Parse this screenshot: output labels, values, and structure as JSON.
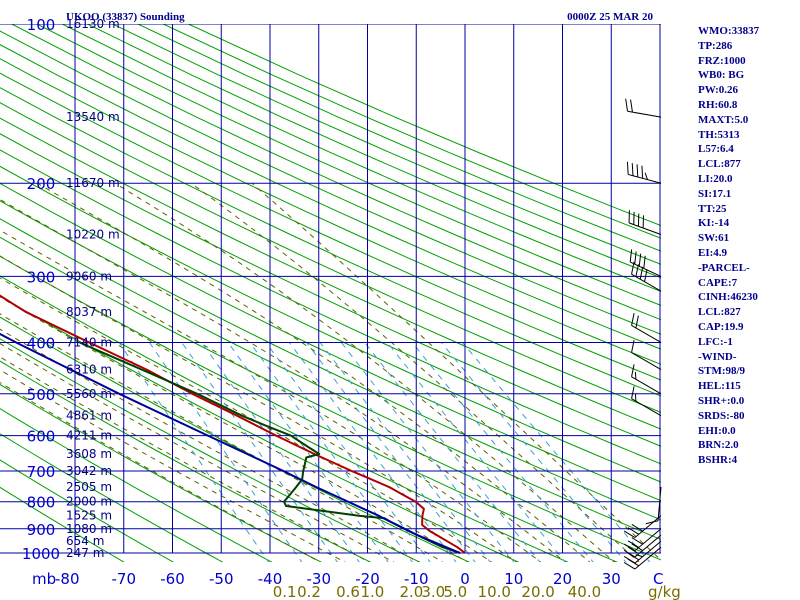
{
  "chart_data": {
    "type": "line",
    "title_left": "UKOO (33837) Sounding",
    "title_right": "0000Z 25 MAR 20",
    "y_unit": "mb",
    "x_unit": "C",
    "mixing_unit": "g/kg",
    "pressure_levels": [
      100,
      200,
      300,
      400,
      500,
      600,
      700,
      800,
      900,
      1000
    ],
    "temperature_ticks": [
      -80,
      -70,
      -60,
      -50,
      -40,
      -30,
      -20,
      -10,
      0,
      10,
      20,
      30,
      40
    ],
    "xlim": [
      -80,
      40
    ],
    "ylim": [
      1000,
      100
    ],
    "y_scale": "log",
    "grid": true,
    "mixing_ratio_labels": [
      {
        "t": -37,
        "text": "0.1"
      },
      {
        "t": -32,
        "text": "0.2"
      },
      {
        "t": -24,
        "text": "0.6"
      },
      {
        "t": -19,
        "text": "1.0"
      },
      {
        "t": -11,
        "text": "2.0"
      },
      {
        "t": -6.5,
        "text": "3.0"
      },
      {
        "t": -2,
        "text": "5.0"
      },
      {
        "t": 6,
        "text": "10.0"
      },
      {
        "t": 15,
        "text": "20.0"
      },
      {
        "t": 24.5,
        "text": "40.0"
      }
    ],
    "height_labels": [
      {
        "p": 100,
        "text": "16130 m"
      },
      {
        "p": 150,
        "text": "13540 m"
      },
      {
        "p": 200,
        "text": "11670 m"
      },
      {
        "p": 250,
        "text": "10220 m"
      },
      {
        "p": 300,
        "text": "9060 m"
      },
      {
        "p": 350,
        "text": "8037 m"
      },
      {
        "p": 400,
        "text": "7140 m"
      },
      {
        "p": 450,
        "text": "6310 m"
      },
      {
        "p": 500,
        "text": "5560 m"
      },
      {
        "p": 550,
        "text": "4861 m"
      },
      {
        "p": 600,
        "text": "4211 m"
      },
      {
        "p": 650,
        "text": "3608 m"
      },
      {
        "p": 700,
        "text": "3042 m"
      },
      {
        "p": 750,
        "text": "2505 m"
      },
      {
        "p": 800,
        "text": "2000 m"
      },
      {
        "p": 850,
        "text": "1525 m"
      },
      {
        "p": 900,
        "text": "1080 m"
      },
      {
        "p": 950,
        "text": "654 m"
      },
      {
        "p": 1000,
        "text": "247 m"
      }
    ],
    "series": [
      {
        "color": "#b00000",
        "points": [
          [
            1000,
            0
          ],
          [
            975,
            -1
          ],
          [
            950,
            -2.5
          ],
          [
            925,
            -4
          ],
          [
            910,
            -5
          ],
          [
            885,
            -6
          ],
          [
            850,
            -5
          ],
          [
            825,
            -4
          ],
          [
            800,
            -5
          ],
          [
            775,
            -7
          ],
          [
            750,
            -9
          ],
          [
            700,
            -15
          ],
          [
            650,
            -21
          ],
          [
            600,
            -27
          ],
          [
            550,
            -33
          ],
          [
            500,
            -40
          ],
          [
            450,
            -47
          ],
          [
            400,
            -56
          ],
          [
            350,
            -66
          ],
          [
            300,
            -74
          ],
          [
            275,
            -76
          ],
          [
            250,
            -77
          ],
          [
            240,
            -76.5
          ],
          [
            225,
            -73
          ],
          [
            215,
            -74
          ],
          [
            200,
            -71
          ],
          [
            170,
            -70
          ],
          [
            150,
            -72
          ],
          [
            125,
            -73
          ],
          [
            100,
            -75
          ]
        ]
      },
      {
        "color": "#004000",
        "points": [
          [
            1000,
            -1
          ],
          [
            975,
            -4
          ],
          [
            950,
            -6
          ],
          [
            925,
            -8
          ],
          [
            900,
            -10
          ],
          [
            875,
            -12
          ],
          [
            860,
            -13
          ],
          [
            850,
            -18
          ],
          [
            815,
            -32
          ],
          [
            800,
            -32
          ],
          [
            775,
            -30
          ],
          [
            750,
            -28
          ],
          [
            725,
            -26
          ],
          [
            700,
            -25
          ],
          [
            680,
            -24
          ],
          [
            660,
            -23
          ],
          [
            650,
            -20
          ],
          [
            625,
            -22
          ],
          [
            600,
            -24
          ],
          [
            575,
            -28
          ],
          [
            550,
            -32
          ],
          [
            500,
            -39
          ],
          [
            450,
            -48
          ],
          [
            400,
            -58
          ]
        ]
      },
      {
        "color": "#00009a",
        "points": [
          [
            1000,
            -1
          ],
          [
            925,
            -8
          ],
          [
            850,
            -14
          ],
          [
            750,
            -24
          ],
          [
            700,
            -29
          ],
          [
            600,
            -41
          ],
          [
            500,
            -55
          ],
          [
            400,
            -71
          ],
          [
            350,
            -80
          ],
          [
            300,
            -91
          ],
          [
            280,
            -94
          ]
        ]
      }
    ],
    "wind_barbs": [
      {
        "p": 150,
        "speed": 20,
        "dir": 280
      },
      {
        "p": 200,
        "speed": 45,
        "dir": 285
      },
      {
        "p": 250,
        "speed": 40,
        "dir": 290
      },
      {
        "p": 300,
        "speed": 40,
        "dir": 295
      },
      {
        "p": 320,
        "speed": 40,
        "dir": 300
      },
      {
        "p": 400,
        "speed": 20,
        "dir": 300
      },
      {
        "p": 450,
        "speed": 10,
        "dir": 300
      },
      {
        "p": 500,
        "speed": 15,
        "dir": 300
      },
      {
        "p": 550,
        "speed": 15,
        "dir": 300
      },
      {
        "p": 750,
        "speed": 10,
        "dir": 185
      },
      {
        "p": 850,
        "speed": 30,
        "dir": 230
      },
      {
        "p": 900,
        "speed": 30,
        "dir": 230
      },
      {
        "p": 925,
        "speed": 30,
        "dir": 230
      },
      {
        "p": 950,
        "speed": 25,
        "dir": 230
      },
      {
        "p": 975,
        "speed": 20,
        "dir": 230
      }
    ]
  },
  "indices": [
    "WMO:33837",
    "TP:286",
    "FRZ:1000",
    "WB0: BG",
    "PW:0.26",
    "RH:60.8",
    "MAXT:5.0",
    "TH:5313",
    "L57:6.4",
    "LCL:877",
    "LI:20.0",
    "SI:17.1",
    "TT:25",
    "KI:-14",
    "SW:61",
    "EI:4.9",
    "-PARCEL-",
    "CAPE:7",
    "CINH:46230",
    "LCL:827",
    "CAP:19.9",
    "LFC:-1",
    "-WIND-",
    "STM:98/9",
    "HEL:115",
    "SHR+:0.0",
    "SRDS:-80",
    "EHI:0.0",
    "BRN:2.0",
    "BSHR:4"
  ],
  "colors": {
    "grid": "#0000a0",
    "dry_adiabat": "#00a000",
    "moist_adiabat": "#606000",
    "mixing_ratio": "#3aa0d0",
    "text": "#00008b"
  }
}
